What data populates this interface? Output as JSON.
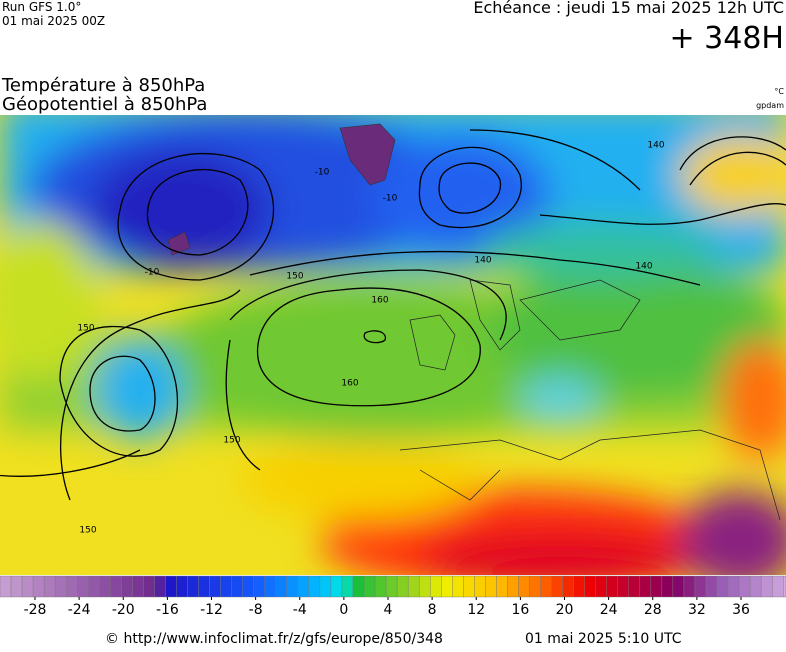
{
  "header": {
    "run": "Run GFS 1.0°",
    "run_date": "01 mai 2025 00Z",
    "valid": "Echéance : jeudi 15 mai 2025 12h UTC",
    "lead": "+ 348H",
    "title_1": "Température à 850hPa",
    "title_2": "Géopotentiel à 850hPa",
    "unit_1": "°C",
    "unit_2": "gpdam"
  },
  "map": {
    "contour_labels": [
      "-10",
      "-10",
      "-10",
      "140",
      "140",
      "140",
      "150",
      "150",
      "150",
      "150",
      "160",
      "160"
    ]
  },
  "colorbar": {
    "ticks": [
      -28,
      -24,
      -20,
      -16,
      -12,
      -8,
      -4,
      0,
      4,
      8,
      12,
      16,
      20,
      24,
      28,
      32,
      36
    ]
  },
  "footer": {
    "url": "© http://www.infoclimat.fr/z/gfs/europe/850/348",
    "generated": "01 mai 2025  5:10 UTC"
  }
}
